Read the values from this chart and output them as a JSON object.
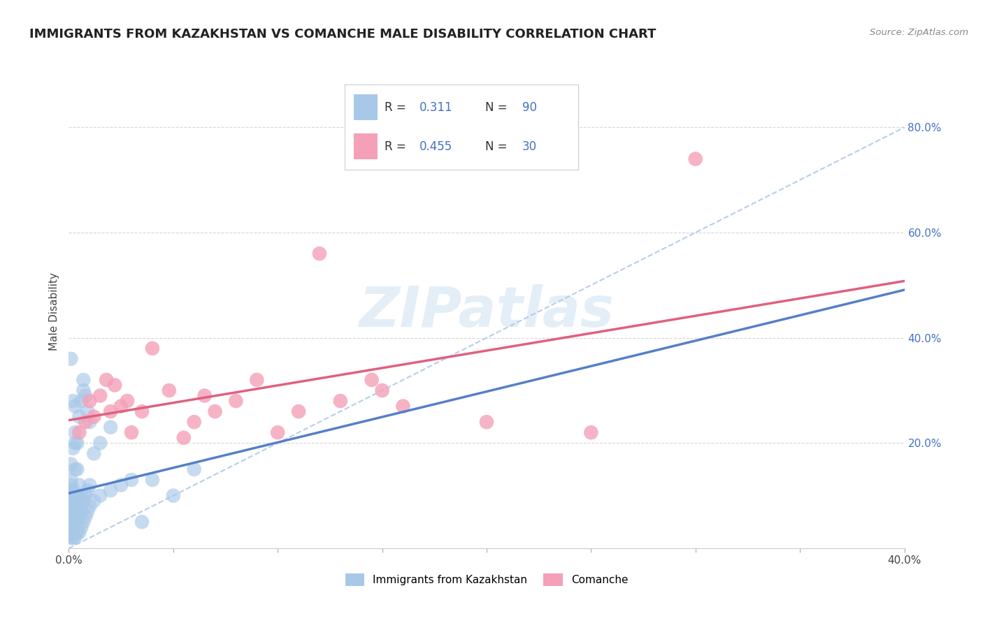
{
  "title": "IMMIGRANTS FROM KAZAKHSTAN VS COMANCHE MALE DISABILITY CORRELATION CHART",
  "source": "Source: ZipAtlas.com",
  "ylabel": "Male Disability",
  "watermark": "ZIPatlas",
  "xlim": [
    0.0,
    0.4
  ],
  "ylim": [
    0.0,
    0.9
  ],
  "blue_R": 0.311,
  "blue_N": 90,
  "pink_R": 0.455,
  "pink_N": 30,
  "blue_color": "#a8c8e8",
  "pink_color": "#f4a0b8",
  "blue_line_color": "#5580c8",
  "pink_line_color": "#e06080",
  "grid_color": "#cccccc",
  "background_color": "#ffffff",
  "blue_scatter_x": [
    0.001,
    0.001,
    0.001,
    0.001,
    0.001,
    0.001,
    0.001,
    0.001,
    0.001,
    0.001,
    0.001,
    0.001,
    0.001,
    0.001,
    0.001,
    0.001,
    0.001,
    0.001,
    0.001,
    0.001,
    0.002,
    0.002,
    0.002,
    0.002,
    0.002,
    0.002,
    0.002,
    0.002,
    0.002,
    0.002,
    0.003,
    0.003,
    0.003,
    0.003,
    0.003,
    0.003,
    0.003,
    0.003,
    0.003,
    0.003,
    0.004,
    0.004,
    0.004,
    0.004,
    0.004,
    0.004,
    0.004,
    0.005,
    0.005,
    0.005,
    0.005,
    0.005,
    0.006,
    0.006,
    0.006,
    0.006,
    0.007,
    0.007,
    0.007,
    0.008,
    0.008,
    0.008,
    0.009,
    0.009,
    0.009,
    0.01,
    0.01,
    0.01,
    0.012,
    0.012,
    0.015,
    0.015,
    0.02,
    0.02,
    0.025,
    0.03,
    0.035,
    0.001,
    0.001,
    0.002,
    0.002,
    0.003,
    0.003,
    0.04,
    0.05,
    0.007,
    0.06
  ],
  "blue_scatter_y": [
    0.02,
    0.025,
    0.03,
    0.035,
    0.04,
    0.045,
    0.05,
    0.055,
    0.06,
    0.065,
    0.07,
    0.075,
    0.08,
    0.085,
    0.09,
    0.095,
    0.1,
    0.11,
    0.12,
    0.13,
    0.02,
    0.03,
    0.04,
    0.05,
    0.06,
    0.07,
    0.08,
    0.09,
    0.1,
    0.11,
    0.02,
    0.03,
    0.04,
    0.05,
    0.06,
    0.07,
    0.08,
    0.09,
    0.15,
    0.2,
    0.03,
    0.04,
    0.06,
    0.08,
    0.1,
    0.15,
    0.2,
    0.03,
    0.06,
    0.09,
    0.12,
    0.25,
    0.04,
    0.07,
    0.1,
    0.28,
    0.05,
    0.09,
    0.3,
    0.06,
    0.1,
    0.29,
    0.07,
    0.11,
    0.26,
    0.08,
    0.12,
    0.24,
    0.09,
    0.18,
    0.1,
    0.2,
    0.11,
    0.23,
    0.12,
    0.13,
    0.05,
    0.36,
    0.16,
    0.28,
    0.19,
    0.27,
    0.22,
    0.13,
    0.1,
    0.32,
    0.15
  ],
  "pink_scatter_x": [
    0.005,
    0.008,
    0.01,
    0.012,
    0.015,
    0.018,
    0.02,
    0.022,
    0.025,
    0.028,
    0.03,
    0.035,
    0.04,
    0.048,
    0.055,
    0.06,
    0.065,
    0.07,
    0.08,
    0.09,
    0.1,
    0.11,
    0.12,
    0.13,
    0.145,
    0.15,
    0.16,
    0.2,
    0.25,
    0.3
  ],
  "pink_scatter_y": [
    0.22,
    0.24,
    0.28,
    0.25,
    0.29,
    0.32,
    0.26,
    0.31,
    0.27,
    0.28,
    0.22,
    0.26,
    0.38,
    0.3,
    0.21,
    0.24,
    0.29,
    0.26,
    0.28,
    0.32,
    0.22,
    0.26,
    0.56,
    0.28,
    0.32,
    0.3,
    0.27,
    0.24,
    0.22,
    0.74
  ],
  "legend_label_blue": "Immigrants from Kazakhstan",
  "legend_label_pink": "Comanche"
}
